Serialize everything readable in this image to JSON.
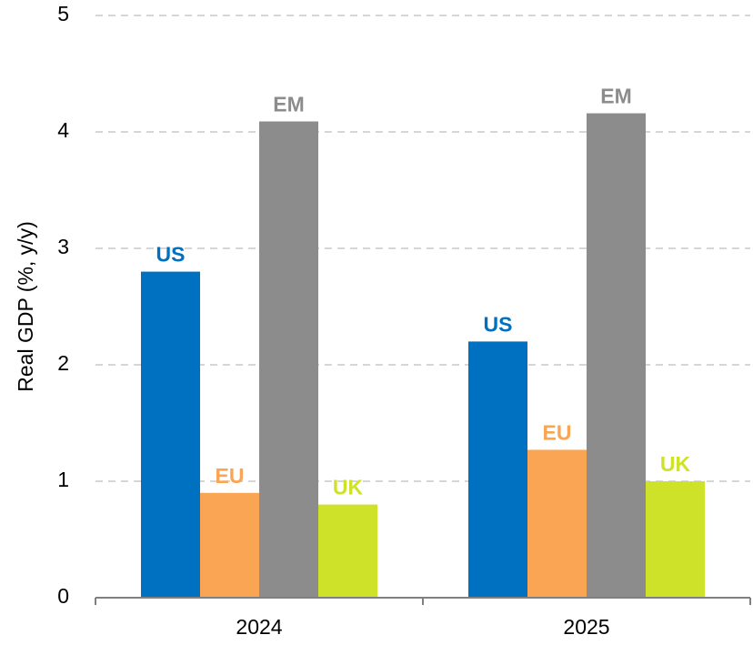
{
  "chart_data": {
    "type": "bar",
    "y_label": "Real GDP (%, y/y)",
    "categories": [
      "2024",
      "2025"
    ],
    "series": [
      {
        "name": "US",
        "color": "#0070c0",
        "values": [
          2.8,
          2.2
        ]
      },
      {
        "name": "EU",
        "color": "#f9a553",
        "values": [
          0.9,
          1.27
        ]
      },
      {
        "name": "EM",
        "color": "#8c8c8c",
        "values": [
          4.09,
          4.16
        ]
      },
      {
        "name": "UK",
        "color": "#cfe22a",
        "values": [
          0.8,
          1.0
        ]
      }
    ],
    "ylim": [
      0,
      5
    ],
    "yticks": [
      0,
      1,
      2,
      3,
      4,
      5
    ],
    "grid": true
  }
}
